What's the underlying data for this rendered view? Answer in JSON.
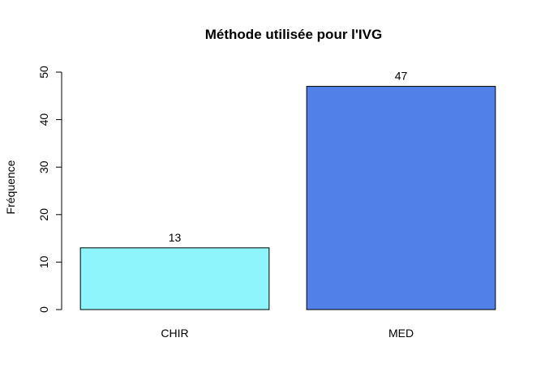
{
  "chart_data": {
    "type": "bar",
    "title": "Méthode utilisée pour l'IVG",
    "xlabel": "",
    "ylabel": "Fréquence",
    "categories": [
      "CHIR",
      "MED"
    ],
    "values": [
      13,
      47
    ],
    "data_labels": [
      "13",
      "47"
    ],
    "colors": [
      "#8ef5fd",
      "#5181e8"
    ],
    "ylim": [
      0,
      50
    ],
    "yticks": [
      0,
      10,
      20,
      30,
      40,
      50
    ],
    "grid": false,
    "legend": "none"
  }
}
